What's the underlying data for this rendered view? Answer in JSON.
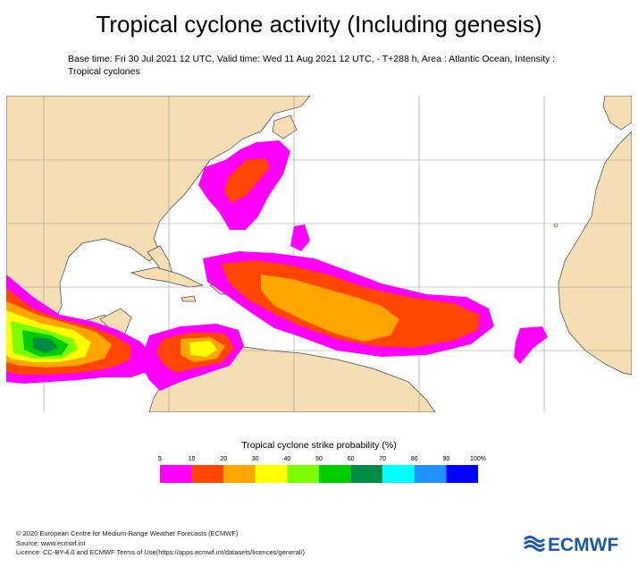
{
  "title": "Tropical cyclone activity (Including genesis)",
  "subtitle": "Base time: Fri 30 Jul 2021 12 UTC, Valid time: Wed 11 Aug 2021 12 UTC, - T+288 h, Area : Atlantic Ocean, Intensity : Tropical cyclones",
  "legend": {
    "title": "Tropical cyclone strike probability (%)",
    "ticks": [
      "5",
      "10",
      "20",
      "30",
      "40",
      "50",
      "60",
      "70",
      "80",
      "90",
      "100%"
    ],
    "colors": [
      "#ff00ff",
      "#ff4500",
      "#ffa500",
      "#ffff00",
      "#7cfc00",
      "#00cd00",
      "#008b45",
      "#00ffff",
      "#1e90ff",
      "#0000ff",
      "#8a2be2"
    ]
  },
  "map_colors": {
    "land": "#f5deb3",
    "ocean": "#ffffff",
    "p5": "#ff00ff",
    "p10": "#ff4500",
    "p20": "#ffa500",
    "p30": "#ffff00",
    "p40": "#7cfc00",
    "p50": "#00cd00",
    "p60": "#008b45"
  },
  "footer": {
    "line1": "© 2020 European Centre for Medium-Range Weather Forecasts (ECMWF)",
    "line2": "Source: www.ecmwf.int",
    "line3": "Licence: CC-BY-4.0 and ECMWF Terms of Use(https://apps.ecmwf.int/datasets/licences/general/)"
  },
  "logo": {
    "text": "ECMWF",
    "color": "#1c5aa6"
  }
}
